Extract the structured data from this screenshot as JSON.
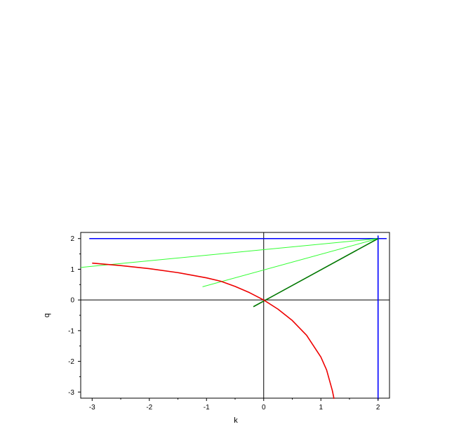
{
  "chart_data": {
    "type": "line",
    "title": "",
    "xlabel": "k",
    "ylabel": "q",
    "xlim": [
      -3.2,
      2.2
    ],
    "ylim": [
      -3.2,
      2.2
    ],
    "x_ticks": [
      -3,
      -2,
      -1,
      0,
      1,
      2
    ],
    "y_ticks": [
      -3,
      -2,
      -1,
      0,
      1,
      2
    ],
    "grid": false,
    "reference_lines": {
      "zero_axes_color": "#000000",
      "horizontal": [
        0
      ],
      "vertical": [
        0
      ]
    },
    "series": [
      {
        "color": "#0000ff",
        "points": [
          [
            -3.05,
            2.0
          ],
          [
            2.15,
            2.0
          ]
        ]
      },
      {
        "color": "#0000ff",
        "points": [
          [
            2.0,
            2.1
          ],
          [
            2.0,
            -3.25
          ]
        ]
      },
      {
        "color": "#33ff33",
        "points": [
          [
            -3.2,
            1.06
          ],
          [
            2.0,
            2.0
          ]
        ]
      },
      {
        "color": "#33ff33",
        "points": [
          [
            -1.07,
            0.43
          ],
          [
            2.0,
            2.0
          ]
        ]
      },
      {
        "color": "#007700",
        "points": [
          [
            -0.18,
            -0.22
          ],
          [
            2.0,
            2.0
          ]
        ]
      },
      {
        "color": "#ee0000",
        "points": [
          [
            -3.0,
            1.2
          ],
          [
            -2.5,
            1.12
          ],
          [
            -2.0,
            1.02
          ],
          [
            -1.5,
            0.89
          ],
          [
            -1.0,
            0.72
          ],
          [
            -0.75,
            0.61
          ],
          [
            -0.5,
            0.44
          ],
          [
            -0.25,
            0.24
          ],
          [
            0.0,
            0.0
          ],
          [
            0.25,
            -0.3
          ],
          [
            0.5,
            -0.67
          ],
          [
            0.75,
            -1.15
          ],
          [
            1.0,
            -1.86
          ],
          [
            1.1,
            -2.28
          ],
          [
            1.2,
            -2.95
          ],
          [
            1.23,
            -3.22
          ]
        ]
      }
    ]
  }
}
